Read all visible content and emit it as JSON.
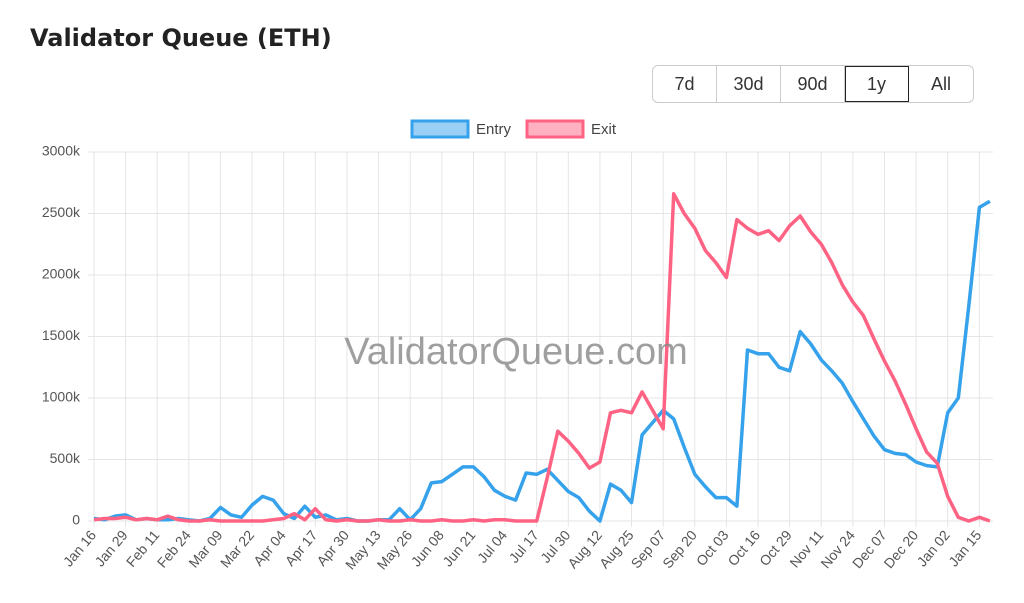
{
  "title": "Validator Queue (ETH)",
  "range_buttons": [
    "7d",
    "30d",
    "90d",
    "1y",
    "All"
  ],
  "active_range": "1y",
  "watermark": "ValidatorQueue.com",
  "chart_data": {
    "type": "line",
    "categories": [
      "Jan 16",
      null,
      null,
      "Jan 29",
      null,
      null,
      "Feb 11",
      null,
      null,
      "Feb 24",
      null,
      null,
      "Mar 09",
      null,
      null,
      "Mar 22",
      null,
      null,
      "Apr 04",
      null,
      null,
      "Apr 17",
      null,
      null,
      "Apr 30",
      null,
      null,
      "May 13",
      null,
      null,
      "May 26",
      null,
      null,
      "Jun 08",
      null,
      null,
      "Jun 21",
      null,
      null,
      "Jul 04",
      null,
      null,
      "Jul 17",
      null,
      null,
      "Jul 30",
      null,
      null,
      "Aug 12",
      null,
      null,
      "Aug 25",
      null,
      null,
      "Sep 07",
      null,
      null,
      "Sep 20",
      null,
      null,
      "Oct 03",
      null,
      null,
      "Oct 16",
      null,
      null,
      "Oct 29",
      null,
      null,
      "Nov 11",
      null,
      null,
      "Nov 24",
      null,
      null,
      "Dec 07",
      null,
      null,
      "Dec 20",
      null,
      null,
      "Jan 02",
      null,
      null,
      "Jan 15",
      null
    ],
    "series": [
      {
        "name": "Entry",
        "color": "#36a2eb",
        "values": [
          20,
          10,
          40,
          50,
          10,
          20,
          10,
          10,
          20,
          10,
          0,
          20,
          110,
          50,
          30,
          130,
          200,
          170,
          60,
          20,
          120,
          30,
          50,
          10,
          20,
          0,
          0,
          10,
          10,
          100,
          10,
          100,
          310,
          320,
          380,
          440,
          440,
          360,
          250,
          200,
          170,
          390,
          380,
          420,
          330,
          240,
          190,
          80,
          0,
          300,
          250,
          150,
          700,
          800,
          900,
          830,
          600,
          380,
          280,
          190,
          190,
          120,
          1390,
          1360,
          1360,
          1250,
          1220,
          1540,
          1440,
          1310,
          1220,
          1120,
          970,
          830,
          690,
          580,
          550,
          540,
          480,
          450,
          440,
          880,
          1000,
          1750,
          2550,
          2600
        ]
      },
      {
        "name": "Exit",
        "color": "#ff6384",
        "values": [
          10,
          20,
          20,
          30,
          10,
          20,
          10,
          40,
          10,
          0,
          0,
          10,
          0,
          0,
          0,
          0,
          0,
          10,
          20,
          60,
          10,
          100,
          10,
          0,
          10,
          0,
          0,
          10,
          0,
          0,
          10,
          0,
          0,
          10,
          0,
          0,
          10,
          0,
          10,
          10,
          0,
          0,
          0,
          350,
          730,
          650,
          550,
          430,
          480,
          880,
          900,
          880,
          1050,
          900,
          750,
          2660,
          2500,
          2380,
          2200,
          2100,
          1980,
          2450,
          2380,
          2330,
          2360,
          2280,
          2400,
          2480,
          2350,
          2250,
          2100,
          1920,
          1780,
          1670,
          1480,
          1300,
          1140,
          950,
          750,
          560,
          470,
          200,
          30,
          0,
          30,
          0
        ]
      }
    ],
    "ylim": [
      0,
      3000
    ],
    "yticks": [
      0,
      {
        "value": 500,
        "label": "500k"
      },
      {
        "value": 1000,
        "label": "1000k"
      },
      {
        "value": 1500,
        "label": "1500k"
      },
      {
        "value": 2000,
        "label": "2000k"
      },
      {
        "value": 2500,
        "label": "2500k"
      },
      {
        "value": 3000,
        "label": "3000k"
      }
    ],
    "grid": true,
    "legend": "top"
  }
}
